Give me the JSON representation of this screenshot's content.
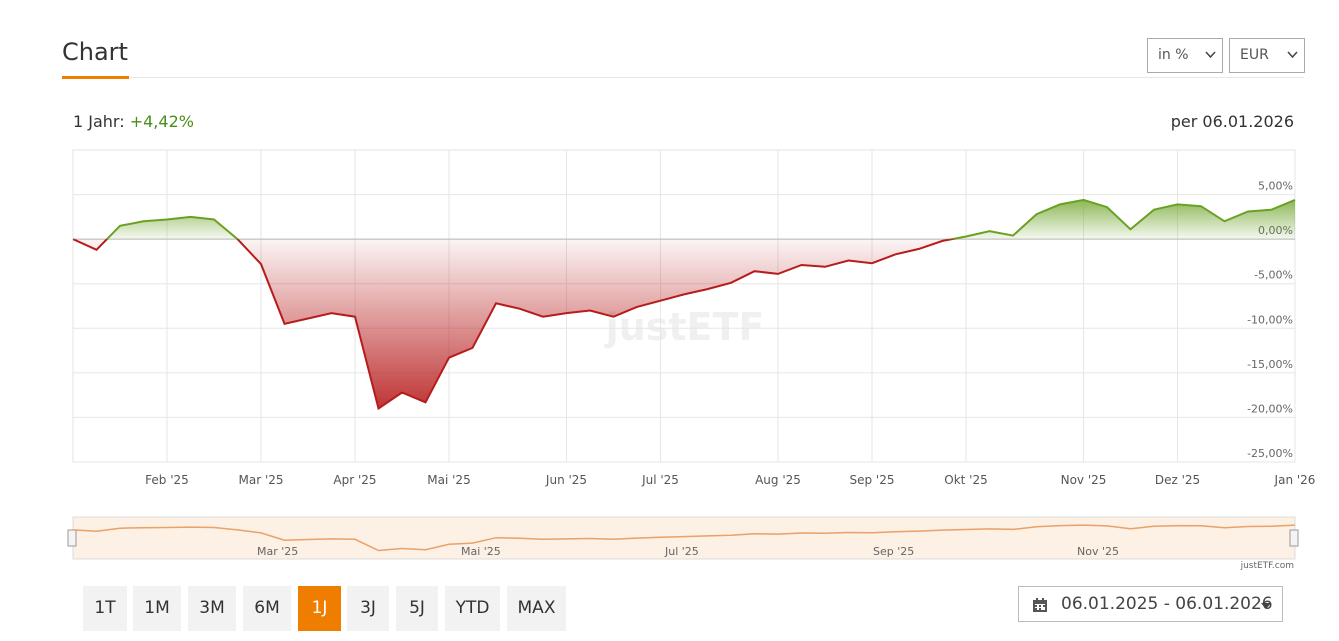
{
  "header": {
    "title": "Chart",
    "selects": [
      "in %",
      "EUR"
    ]
  },
  "summary": {
    "label": "1 Jahr:",
    "value": "+4,42%",
    "date": "per 06.01.2026"
  },
  "chart_data": {
    "type": "area",
    "watermark": "justETF",
    "categories": [
      null,
      null,
      null,
      null,
      "Feb '25",
      null,
      null,
      null,
      "Mar '25",
      null,
      null,
      null,
      "Apr '25",
      null,
      null,
      null,
      "Mai '25",
      null,
      null,
      null,
      null,
      "Jun '25",
      null,
      null,
      null,
      "Jul '25",
      null,
      null,
      null,
      null,
      "Aug '25",
      null,
      null,
      null,
      "Sep '25",
      null,
      null,
      null,
      "Okt '25",
      null,
      null,
      null,
      null,
      "Nov '25",
      null,
      null,
      null,
      "Dez '25",
      null,
      null,
      null,
      null,
      "Jan '26"
    ],
    "values": [
      0,
      -1.2,
      1.5,
      2,
      2.2,
      2.5,
      2.2,
      0,
      -2.8,
      -9.5,
      -8.9,
      -8.3,
      -8.7,
      -19,
      -17.2,
      -18.3,
      -13.3,
      -12.2,
      -7.2,
      -7.8,
      -8.7,
      -8.3,
      -8,
      -8.7,
      -7.6,
      -6.9,
      -6.2,
      -5.6,
      -4.9,
      -3.6,
      -3.9,
      -2.9,
      -3.1,
      -2.4,
      -2.7,
      -1.7,
      -1.1,
      -0.2,
      0.3,
      0.9,
      0.4,
      2.8,
      3.9,
      4.4,
      3.6,
      1.1,
      3.3,
      3.9,
      3.7,
      2,
      3.1,
      3.3,
      4.4
    ],
    "positive_color": "#6aa123",
    "negative_color": "#b71c1c",
    "ylim": [
      -25,
      10
    ],
    "yticks": [
      {
        "value": 5,
        "label": "5,00%"
      },
      {
        "value": 0,
        "label": "0,00%"
      },
      {
        "value": -5,
        "label": "-5,00%"
      },
      {
        "value": -10,
        "label": "-10,00%"
      },
      {
        "value": -15,
        "label": "-15,00%"
      },
      {
        "value": -20,
        "label": "-20,00%"
      },
      {
        "value": -25,
        "label": "-25,00%"
      }
    ],
    "grid": true
  },
  "navigator": {
    "labels": [
      "Mar '25",
      "Mai '25",
      "Jul '25",
      "Sep '25",
      "Nov '25"
    ]
  },
  "credit": "justETF.com",
  "buttons": [
    "1T",
    "1M",
    "3M",
    "6M",
    "1J",
    "3J",
    "5J",
    "YTD",
    "MAX"
  ],
  "active_button": "1J",
  "date_range": "06.01.2025 - 06.01.2026"
}
